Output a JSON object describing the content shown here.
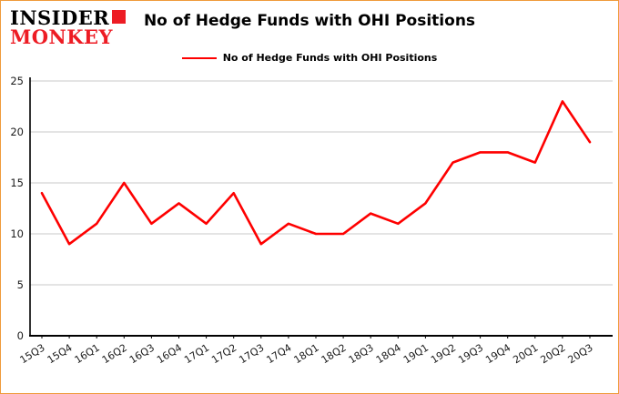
{
  "logo": {
    "line1": "INSIDER",
    "line2": "MONKEY"
  },
  "colors": {
    "line": "#fe0000",
    "frame_border": "#ef9b3b",
    "grid": "#c9c9c9",
    "axis": "#000000",
    "logo_red": "#ed1c24"
  },
  "chart_data": {
    "type": "line",
    "title": "No of Hedge Funds with OHI Positions",
    "legend": "No of Hedge Funds with OHI Positions",
    "legend_position": "top-center",
    "grid": true,
    "categories": [
      "15Q3",
      "15Q4",
      "16Q1",
      "16Q2",
      "16Q3",
      "16Q4",
      "17Q1",
      "17Q2",
      "17Q3",
      "17Q4",
      "18Q1",
      "18Q2",
      "18Q3",
      "18Q4",
      "19Q1",
      "19Q2",
      "19Q3",
      "19Q4",
      "20Q1",
      "20Q2",
      "20Q3"
    ],
    "series": [
      {
        "name": "No of Hedge Funds with OHI Positions",
        "color": "#fe0000",
        "values": [
          14,
          9,
          11,
          15,
          11,
          13,
          11,
          14,
          9,
          11,
          10,
          10,
          12,
          11,
          13,
          17,
          18,
          18,
          17,
          23,
          19
        ]
      }
    ],
    "xlabel": "",
    "ylabel": "",
    "ylim": [
      0,
      25
    ],
    "yticks": [
      0,
      5,
      10,
      15,
      20,
      25
    ]
  }
}
